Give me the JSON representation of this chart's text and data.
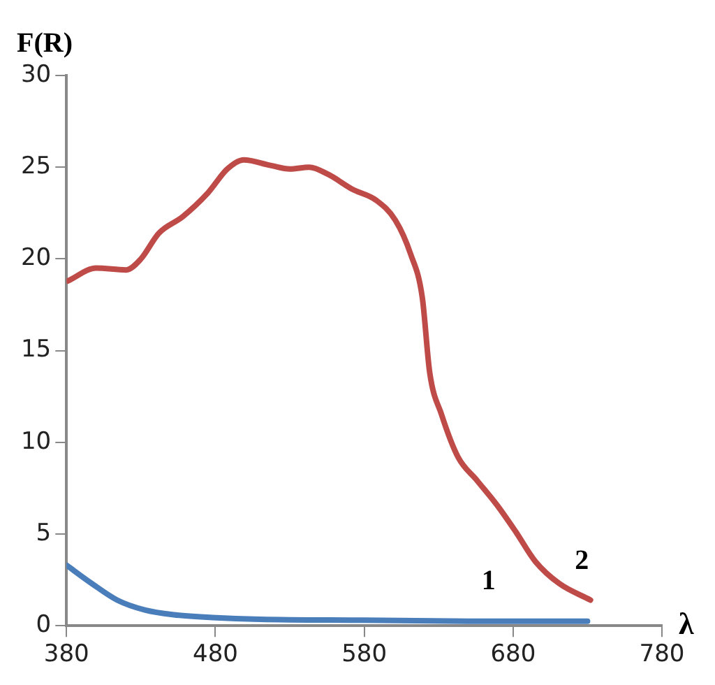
{
  "chart_data": {
    "type": "line",
    "xlabel": "λ",
    "ylabel": "F(R)",
    "xlim": [
      380,
      780
    ],
    "xticks": [
      380,
      480,
      580,
      680,
      780
    ],
    "ylim": [
      0,
      30
    ],
    "yticks": [
      0,
      5,
      10,
      15,
      20,
      25,
      30
    ],
    "grid": false,
    "legend": false,
    "marker": "none",
    "line_style": "solid",
    "series": [
      {
        "name": "1",
        "color": "#4a7ebb",
        "x": [
          380,
          397,
          414,
          433,
          452,
          478,
          510,
          580,
          650,
          730
        ],
        "values": [
          3.3,
          2.3,
          1.4,
          0.85,
          0.6,
          0.45,
          0.35,
          0.3,
          0.25,
          0.25
        ]
      },
      {
        "name": "2",
        "color": "#be4b48",
        "x": [
          381,
          400,
          420,
          430,
          442,
          458,
          475,
          488,
          499,
          517,
          530,
          543,
          556,
          572,
          588,
          601,
          611,
          619,
          624,
          632,
          643,
          656,
          669,
          682,
          695,
          711,
          732
        ],
        "values": [
          18.8,
          19.5,
          19.4,
          20.0,
          21.4,
          22.3,
          23.6,
          24.9,
          25.4,
          25.1,
          24.9,
          25.0,
          24.6,
          23.8,
          23.2,
          22.1,
          20.3,
          17.9,
          13.8,
          11.5,
          9.2,
          7.9,
          6.6,
          5.1,
          3.5,
          2.3,
          1.4
        ]
      }
    ]
  }
}
